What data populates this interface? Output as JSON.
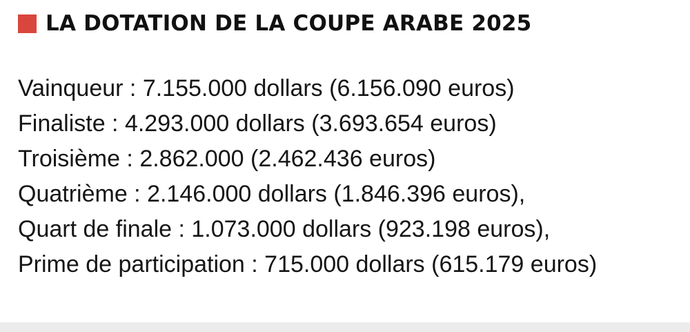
{
  "header": {
    "marker_color": "#d9463e",
    "title": "LA DOTATION DE LA COUPE ARABE 2025"
  },
  "prizes": [
    "Vainqueur : 7.155.000 dollars (6.156.090 euros)",
    "Finaliste : 4.293.000 dollars (3.693.654 euros)",
    "Troisième : 2.862.000 (2.462.436 euros)",
    "Quatrième : 2.146.000 dollars (1.846.396 euros),",
    "Quart de finale : 1.073.000 dollars (923.198 euros),",
    "Prime de participation : 715.000 dollars (615.179 euros)"
  ]
}
